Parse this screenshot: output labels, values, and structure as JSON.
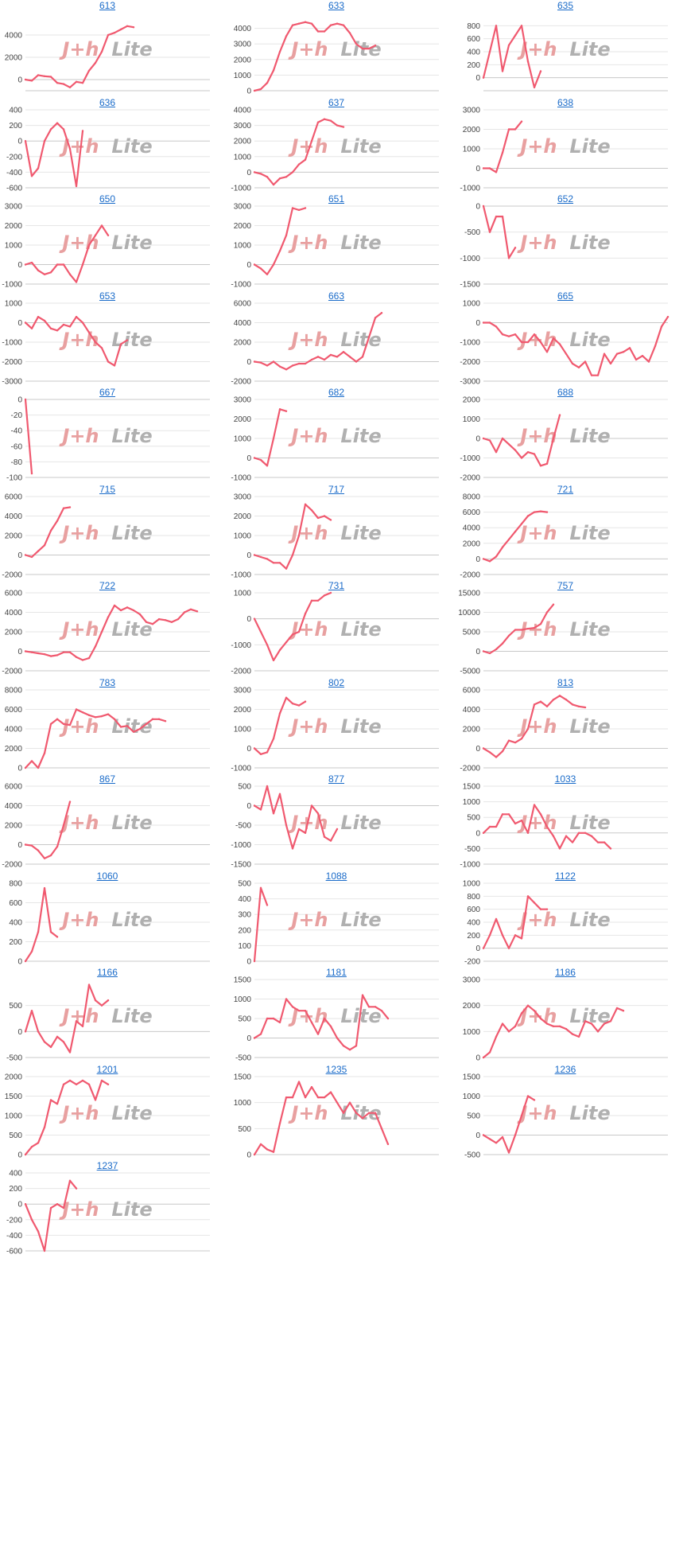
{
  "watermark": {
    "text_left": "J+h",
    "text_right": "Lite",
    "color_left": "#e8a0a0",
    "color_right": "#b0b0b0"
  },
  "colors": {
    "line": "#f0596f",
    "grid": "#e6e6e6",
    "axis": "#c8c8c8",
    "title": "#1a6bc9"
  },
  "chart_data": [
    {
      "type": "line",
      "title": "613",
      "ylim": [
        -1000,
        6000
      ],
      "yticks": [
        0,
        2000,
        4000
      ],
      "values": [
        0,
        -100,
        400,
        300,
        250,
        -300,
        -400,
        -700,
        -200,
        -300,
        800,
        1500,
        2500,
        4000,
        4200,
        4500,
        4800,
        4700
      ]
    },
    {
      "type": "line",
      "title": "633",
      "ylim": [
        0,
        5000
      ],
      "yticks": [
        0,
        1000,
        2000,
        3000,
        4000
      ],
      "values": [
        0,
        100,
        500,
        1300,
        2500,
        3500,
        4200,
        4300,
        4400,
        4300,
        3800,
        3800,
        4200,
        4300,
        4200,
        3700,
        3000,
        2700,
        2700,
        2900
      ]
    },
    {
      "type": "line",
      "title": "635",
      "ylim": [
        -200,
        1000
      ],
      "yticks": [
        0,
        200,
        400,
        600,
        800
      ],
      "values": [
        0,
        400,
        800,
        100,
        500,
        650,
        800,
        250,
        -150,
        100
      ]
    },
    {
      "type": "line",
      "title": "636",
      "ylim": [
        -600,
        400
      ],
      "yticks": [
        -600,
        -400,
        -200,
        0,
        200,
        400
      ],
      "values": [
        0,
        -450,
        -350,
        0,
        150,
        230,
        150,
        -100,
        -580,
        130
      ]
    },
    {
      "type": "line",
      "title": "637",
      "ylim": [
        -1000,
        4000
      ],
      "yticks": [
        -1000,
        0,
        1000,
        2000,
        3000,
        4000
      ],
      "values": [
        0,
        -100,
        -300,
        -800,
        -400,
        -300,
        0,
        500,
        800,
        2000,
        3200,
        3400,
        3300,
        3000,
        2900
      ]
    },
    {
      "type": "line",
      "title": "638",
      "ylim": [
        -1000,
        3000
      ],
      "yticks": [
        -1000,
        0,
        1000,
        2000,
        3000
      ],
      "values": [
        0,
        0,
        -200,
        800,
        2000,
        2000,
        2400
      ]
    },
    {
      "type": "line",
      "title": "650",
      "ylim": [
        -1000,
        3000
      ],
      "yticks": [
        -1000,
        0,
        1000,
        2000,
        3000
      ],
      "values": [
        0,
        100,
        -300,
        -500,
        -400,
        0,
        0,
        -500,
        -900,
        0,
        1000,
        1500,
        2000,
        1500
      ]
    },
    {
      "type": "line",
      "title": "651",
      "ylim": [
        -1000,
        3000
      ],
      "yticks": [
        -1000,
        0,
        1000,
        2000,
        3000
      ],
      "values": [
        0,
        -200,
        -500,
        0,
        700,
        1500,
        2900,
        2800,
        2900
      ]
    },
    {
      "type": "line",
      "title": "652",
      "ylim": [
        -1500,
        0
      ],
      "yticks": [
        -1500,
        -1000,
        -500,
        0
      ],
      "values": [
        0,
        -500,
        -200,
        -200,
        -1000,
        -800
      ]
    },
    {
      "type": "line",
      "title": "653",
      "ylim": [
        -3000,
        1000
      ],
      "yticks": [
        -3000,
        -2000,
        -1000,
        0,
        1000
      ],
      "values": [
        0,
        -300,
        300,
        100,
        -300,
        -400,
        -100,
        -200,
        300,
        0,
        -500,
        -1000,
        -1300,
        -2000,
        -2200,
        -1100,
        -900
      ]
    },
    {
      "type": "line",
      "title": "663",
      "ylim": [
        -2000,
        6000
      ],
      "yticks": [
        -2000,
        0,
        2000,
        4000,
        6000
      ],
      "values": [
        0,
        -100,
        -400,
        0,
        -500,
        -800,
        -400,
        -200,
        -200,
        200,
        500,
        200,
        700,
        500,
        1000,
        500,
        0,
        500,
        2500,
        4500,
        5000
      ]
    },
    {
      "type": "line",
      "title": "665",
      "ylim": [
        -3000,
        1000
      ],
      "yticks": [
        -3000,
        -2000,
        -1000,
        0,
        1000
      ],
      "values": [
        0,
        0,
        -200,
        -600,
        -700,
        -600,
        -1000,
        -1000,
        -600,
        -1000,
        -1500,
        -800,
        -1100,
        -1600,
        -2100,
        -2300,
        -2000,
        -2700,
        -2700,
        -1600,
        -2100,
        -1600,
        -1500,
        -1300,
        -1900,
        -1700,
        -2000,
        -1200,
        -200,
        300
      ]
    },
    {
      "type": "line",
      "title": "667",
      "ylim": [
        -100,
        0
      ],
      "yticks": [
        -100,
        -80,
        -60,
        -40,
        -20,
        0
      ],
      "values": [
        0,
        -95
      ]
    },
    {
      "type": "line",
      "title": "682",
      "ylim": [
        -1000,
        3000
      ],
      "yticks": [
        -1000,
        0,
        1000,
        2000,
        3000
      ],
      "values": [
        0,
        -100,
        -400,
        1000,
        2500,
        2400
      ]
    },
    {
      "type": "line",
      "title": "688",
      "ylim": [
        -2000,
        2000
      ],
      "yticks": [
        -2000,
        -1000,
        0,
        1000,
        2000
      ],
      "values": [
        0,
        -100,
        -700,
        0,
        -300,
        -600,
        -1000,
        -700,
        -800,
        -1400,
        -1300,
        0,
        1200
      ]
    },
    {
      "type": "line",
      "title": "715",
      "ylim": [
        -2000,
        6000
      ],
      "yticks": [
        -2000,
        0,
        2000,
        4000,
        6000
      ],
      "values": [
        0,
        -200,
        400,
        1000,
        2500,
        3500,
        4800,
        4900
      ]
    },
    {
      "type": "line",
      "title": "717",
      "ylim": [
        -1000,
        3000
      ],
      "yticks": [
        -1000,
        0,
        1000,
        2000,
        3000
      ],
      "values": [
        0,
        -100,
        -200,
        -400,
        -400,
        -700,
        0,
        1000,
        2600,
        2300,
        1900,
        2000,
        1800
      ]
    },
    {
      "type": "line",
      "title": "721",
      "ylim": [
        -2000,
        8000
      ],
      "yticks": [
        -2000,
        0,
        2000,
        4000,
        6000,
        8000
      ],
      "values": [
        0,
        -300,
        300,
        1500,
        2500,
        3500,
        4500,
        5500,
        6000,
        6100,
        6000
      ]
    },
    {
      "type": "line",
      "title": "722",
      "ylim": [
        -2000,
        6000
      ],
      "yticks": [
        -2000,
        0,
        2000,
        4000,
        6000
      ],
      "values": [
        0,
        -100,
        -200,
        -300,
        -500,
        -400,
        -100,
        -100,
        -600,
        -900,
        -700,
        500,
        2000,
        3500,
        4700,
        4200,
        4500,
        4200,
        3800,
        3000,
        2800,
        3300,
        3200,
        3000,
        3300,
        4000,
        4300,
        4100
      ]
    },
    {
      "type": "line",
      "title": "731",
      "ylim": [
        -2000,
        1000
      ],
      "yticks": [
        -2000,
        -1000,
        0,
        1000
      ],
      "values": [
        0,
        -500,
        -1000,
        -1600,
        -1200,
        -900,
        -600,
        -500,
        200,
        700,
        700,
        900,
        1000
      ]
    },
    {
      "type": "line",
      "title": "757",
      "ylim": [
        -5000,
        15000
      ],
      "yticks": [
        -5000,
        0,
        5000,
        10000,
        15000
      ],
      "values": [
        0,
        -500,
        500,
        2000,
        4000,
        5500,
        5500,
        5800,
        6000,
        7000,
        10000,
        12000
      ]
    },
    {
      "type": "line",
      "title": "783",
      "ylim": [
        0,
        8000
      ],
      "yticks": [
        0,
        2000,
        4000,
        6000,
        8000
      ],
      "values": [
        0,
        700,
        0,
        1500,
        4500,
        5000,
        4500,
        4400,
        6000,
        5700,
        5400,
        5200,
        5300,
        5500,
        5000,
        4200,
        4300,
        3700,
        4000,
        4500,
        5000,
        5000,
        4800
      ]
    },
    {
      "type": "line",
      "title": "802",
      "ylim": [
        -1000,
        3000
      ],
      "yticks": [
        -1000,
        0,
        1000,
        2000,
        3000
      ],
      "values": [
        0,
        -300,
        -200,
        500,
        1800,
        2600,
        2300,
        2200,
        2400
      ]
    },
    {
      "type": "line",
      "title": "813",
      "ylim": [
        -2000,
        6000
      ],
      "yticks": [
        -2000,
        0,
        2000,
        4000,
        6000
      ],
      "values": [
        0,
        -400,
        -900,
        -300,
        800,
        600,
        1000,
        2000,
        4500,
        4800,
        4300,
        5000,
        5400,
        5000,
        4500,
        4300,
        4200
      ]
    },
    {
      "type": "line",
      "title": "867",
      "ylim": [
        -2000,
        6000
      ],
      "yticks": [
        -2000,
        0,
        2000,
        4000,
        6000
      ],
      "values": [
        0,
        -100,
        -600,
        -1400,
        -1100,
        -200,
        2000,
        4400
      ]
    },
    {
      "type": "line",
      "title": "877",
      "ylim": [
        -1500,
        500
      ],
      "yticks": [
        -1500,
        -1000,
        -500,
        0,
        500
      ],
      "values": [
        0,
        -100,
        500,
        -200,
        300,
        -500,
        -1100,
        -600,
        -700,
        0,
        -200,
        -800,
        -900,
        -600
      ]
    },
    {
      "type": "line",
      "title": "1033",
      "ylim": [
        -1000,
        1500
      ],
      "yticks": [
        -1000,
        -500,
        0,
        500,
        1000,
        1500
      ],
      "values": [
        0,
        200,
        200,
        600,
        600,
        300,
        400,
        0,
        900,
        600,
        200,
        -100,
        -500,
        -100,
        -300,
        0,
        0,
        -100,
        -300,
        -300,
        -500
      ]
    },
    {
      "type": "line",
      "title": "1060",
      "ylim": [
        0,
        800
      ],
      "yticks": [
        0,
        200,
        400,
        600,
        800
      ],
      "values": [
        0,
        100,
        300,
        750,
        300,
        250
      ]
    },
    {
      "type": "line",
      "title": "1088",
      "ylim": [
        0,
        500
      ],
      "yticks": [
        0,
        100,
        200,
        300,
        400,
        500
      ],
      "values": [
        0,
        470,
        360
      ]
    },
    {
      "type": "line",
      "title": "1122",
      "ylim": [
        -200,
        1000
      ],
      "yticks": [
        -200,
        0,
        200,
        400,
        600,
        800,
        1000
      ],
      "values": [
        0,
        200,
        450,
        200,
        0,
        200,
        150,
        800,
        700,
        600,
        600
      ]
    },
    {
      "type": "line",
      "title": "1166",
      "ylim": [
        -500,
        1000
      ],
      "yticks": [
        -500,
        0,
        500
      ],
      "values": [
        0,
        400,
        0,
        -200,
        -300,
        -100,
        -200,
        -400,
        200,
        100,
        900,
        600,
        500,
        600
      ]
    },
    {
      "type": "line",
      "title": "1181",
      "ylim": [
        -500,
        1500
      ],
      "yticks": [
        -500,
        0,
        500,
        1000,
        1500
      ],
      "values": [
        0,
        100,
        500,
        500,
        400,
        1000,
        800,
        700,
        700,
        400,
        100,
        500,
        300,
        0,
        -200,
        -300,
        -200,
        1100,
        800,
        800,
        700,
        500
      ]
    },
    {
      "type": "line",
      "title": "1186",
      "ylim": [
        0,
        3000
      ],
      "yticks": [
        0,
        1000,
        2000,
        3000
      ],
      "values": [
        0,
        200,
        800,
        1300,
        1000,
        1200,
        1700,
        2000,
        1800,
        1500,
        1300,
        1200,
        1200,
        1100,
        900,
        800,
        1400,
        1300,
        1000,
        1300,
        1400,
        1900,
        1800
      ]
    },
    {
      "type": "line",
      "title": "1201",
      "ylim": [
        0,
        2000
      ],
      "yticks": [
        0,
        500,
        1000,
        1500,
        2000
      ],
      "values": [
        0,
        200,
        300,
        700,
        1400,
        1300,
        1800,
        1900,
        1800,
        1900,
        1800,
        1400,
        1900,
        1800
      ]
    },
    {
      "type": "line",
      "title": "1235",
      "ylim": [
        0,
        1500
      ],
      "yticks": [
        0,
        500,
        1000,
        1500
      ],
      "values": [
        0,
        200,
        100,
        50,
        600,
        1100,
        1100,
        1400,
        1100,
        1300,
        1100,
        1100,
        1200,
        1000,
        800,
        1000,
        800,
        700,
        800,
        800,
        500,
        200
      ]
    },
    {
      "type": "line",
      "title": "1236",
      "ylim": [
        -500,
        1500
      ],
      "yticks": [
        -500,
        0,
        500,
        1000,
        1500
      ],
      "values": [
        0,
        -100,
        -200,
        -50,
        -450,
        0,
        500,
        1000,
        900
      ]
    },
    {
      "type": "line",
      "title": "1237",
      "ylim": [
        -600,
        400
      ],
      "yticks": [
        -600,
        -400,
        -200,
        0,
        200,
        400
      ],
      "values": [
        0,
        -200,
        -350,
        -600,
        -50,
        0,
        -50,
        300,
        200
      ]
    }
  ]
}
